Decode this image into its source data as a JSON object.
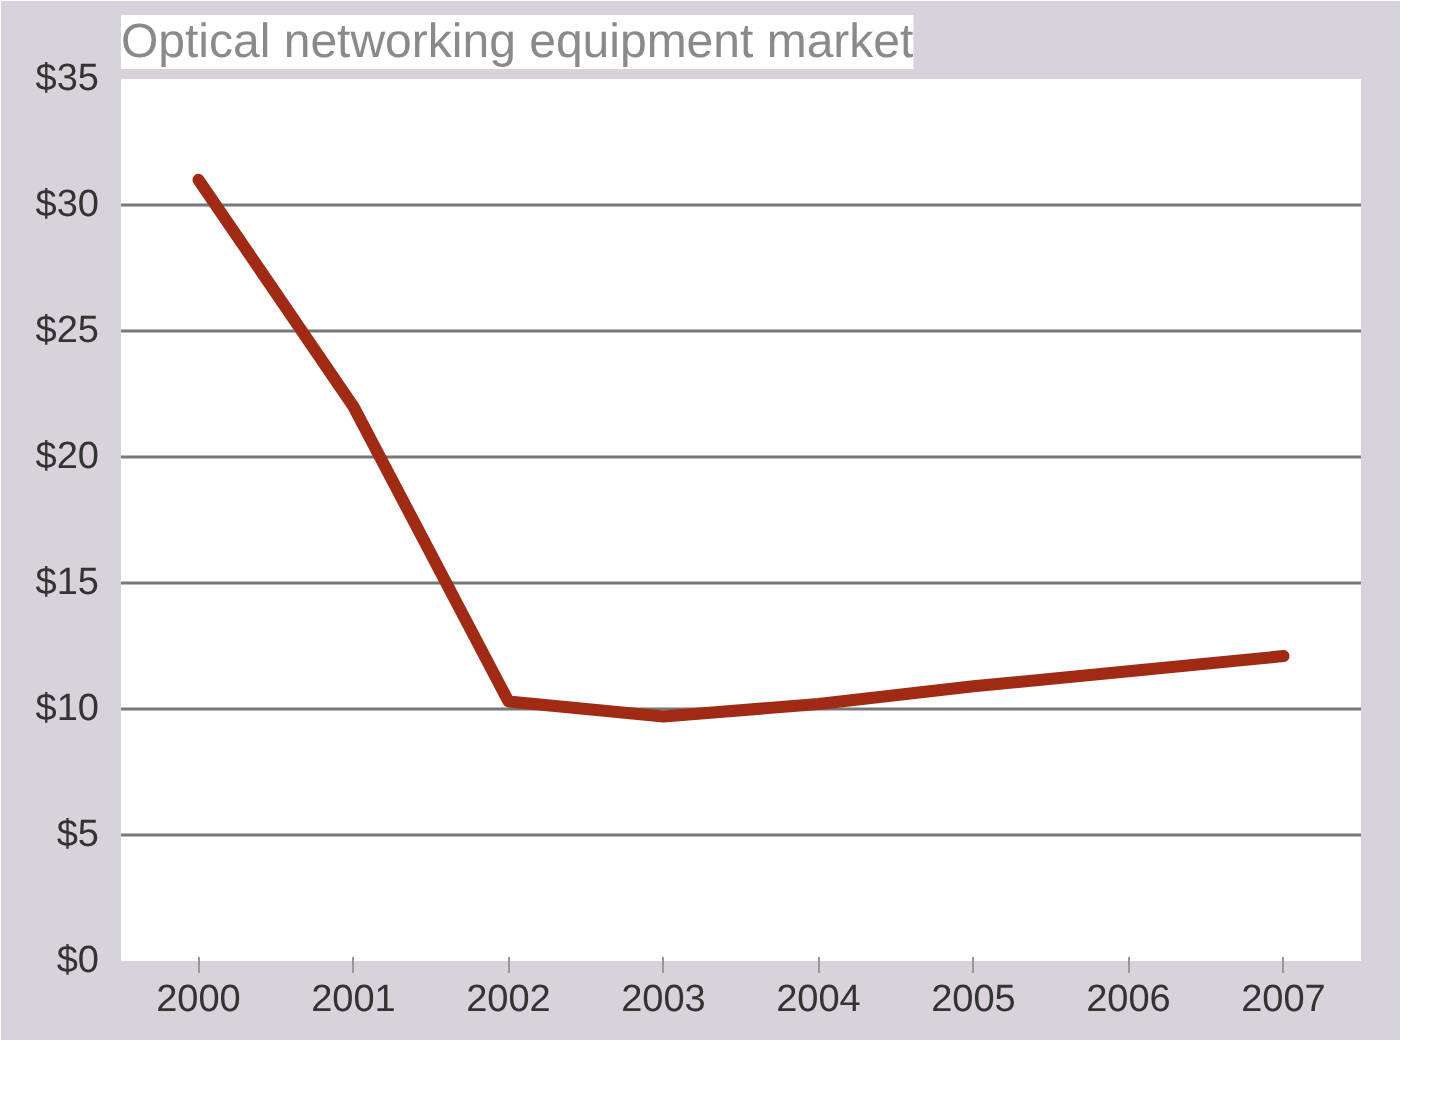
{
  "chart_data": {
    "type": "line",
    "title": "Optical networking equipment market",
    "categories": [
      "2000",
      "2001",
      "2002",
      "2003",
      "2004",
      "2005",
      "2006",
      "2007"
    ],
    "series": [
      {
        "color": "#a02a14",
        "values": [
          31.0,
          22.0,
          10.3,
          9.7,
          10.2,
          10.9,
          11.5,
          12.1
        ]
      }
    ],
    "ylim": [
      0,
      35
    ],
    "yticks": [
      {
        "value": 0,
        "label": "$0"
      },
      {
        "value": 5,
        "label": "$5"
      },
      {
        "value": 10,
        "label": "$10"
      },
      {
        "value": 15,
        "label": "$15"
      },
      {
        "value": 20,
        "label": "$20"
      },
      {
        "value": 25,
        "label": "$25"
      },
      {
        "value": 30,
        "label": "$30"
      },
      {
        "value": 35,
        "label": "$35"
      }
    ],
    "grid": "y",
    "marker": "none",
    "line_style": "solid"
  }
}
